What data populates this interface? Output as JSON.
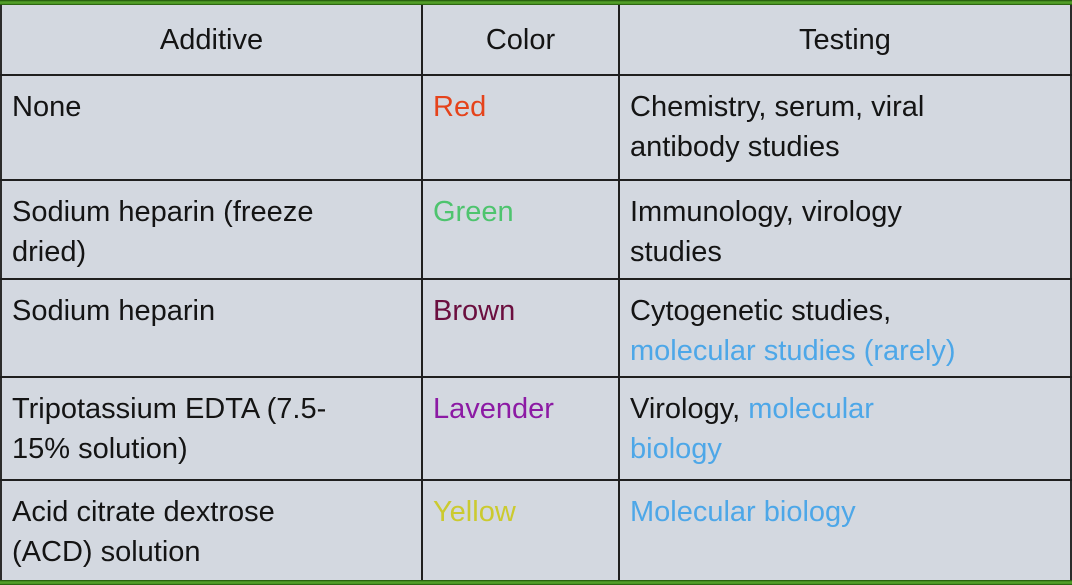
{
  "accents": {
    "slide_border_green": "#3e8a1c",
    "table_background": "#d3d8e0",
    "grid_line": "#1f1f1f",
    "text_black": "#141414",
    "link_blue": "#4da7e8"
  },
  "table": {
    "headers": [
      {
        "label": "Additive"
      },
      {
        "label": "Color"
      },
      {
        "label": "Testing"
      }
    ],
    "rows": [
      {
        "additive": "None",
        "color": {
          "label": "Red",
          "hex": "#e5431b"
        },
        "testing": [
          {
            "text": "Chemistry, serum, viral\nantibody studies",
            "color": "#141414"
          }
        ]
      },
      {
        "additive": "Sodium heparin (freeze\ndried)",
        "color": {
          "label": "Green",
          "hex": "#4ec46e"
        },
        "testing": [
          {
            "text": "Immunology, virology\nstudies",
            "color": "#141414"
          }
        ]
      },
      {
        "additive": "Sodium heparin",
        "color": {
          "label": "Brown",
          "hex": "#6b0f3f"
        },
        "testing": [
          {
            "text": "Cytogenetic studies,\n",
            "color": "#141414"
          },
          {
            "text": "molecular studies (rarely)",
            "color": "#4da7e8"
          }
        ]
      },
      {
        "additive": "Tripotassium EDTA (7.5-\n15% solution)",
        "color": {
          "label": "Lavender",
          "hex": "#8c1aa4"
        },
        "testing": [
          {
            "text": "Virology, ",
            "color": "#141414"
          },
          {
            "text": "molecular\nbiology",
            "color": "#4da7e8"
          }
        ]
      },
      {
        "additive": "Acid citrate dextrose\n(ACD) solution",
        "color": {
          "label": "Yellow",
          "hex": "#cbca2f"
        },
        "testing": [
          {
            "text": "Molecular biology",
            "color": "#4da7e8"
          }
        ]
      }
    ]
  }
}
